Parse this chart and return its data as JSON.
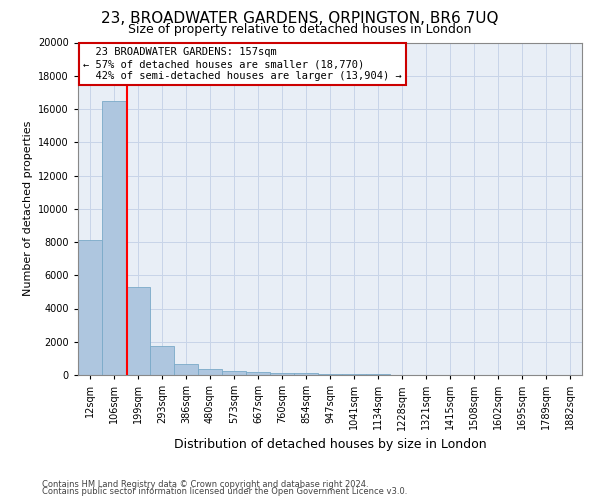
{
  "title": "23, BROADWATER GARDENS, ORPINGTON, BR6 7UQ",
  "subtitle": "Size of property relative to detached houses in London",
  "xlabel": "Distribution of detached houses by size in London",
  "ylabel": "Number of detached properties",
  "footnote1": "Contains HM Land Registry data © Crown copyright and database right 2024.",
  "footnote2": "Contains public sector information licensed under the Open Government Licence v3.0.",
  "bar_labels": [
    "12sqm",
    "106sqm",
    "199sqm",
    "293sqm",
    "386sqm",
    "480sqm",
    "573sqm",
    "667sqm",
    "760sqm",
    "854sqm",
    "947sqm",
    "1041sqm",
    "1134sqm",
    "1228sqm",
    "1321sqm",
    "1415sqm",
    "1508sqm",
    "1602sqm",
    "1695sqm",
    "1789sqm",
    "1882sqm"
  ],
  "bar_values": [
    8100,
    16500,
    5300,
    1750,
    650,
    350,
    270,
    200,
    150,
    110,
    80,
    60,
    45,
    30,
    20,
    15,
    12,
    10,
    8,
    6,
    5
  ],
  "bar_color": "#aec6df",
  "bar_edgecolor": "#7aaac8",
  "ylim": [
    0,
    20000
  ],
  "yticks": [
    0,
    2000,
    4000,
    6000,
    8000,
    10000,
    12000,
    14000,
    16000,
    18000,
    20000
  ],
  "property_name": "23 BROADWATER GARDENS: 157sqm",
  "pct_smaller": "57% of detached houses are smaller (18,770)",
  "pct_larger": "42% of semi-detached houses are larger (13,904)",
  "vline_x": 1.55,
  "annotation_box_color": "#ffffff",
  "annotation_box_edgecolor": "#cc0000",
  "grid_color": "#c8d4e8",
  "background_color": "#e8eef6",
  "title_fontsize": 11,
  "subtitle_fontsize": 9,
  "ylabel_fontsize": 8,
  "xlabel_fontsize": 9,
  "tick_fontsize": 7,
  "ann_fontsize": 7.5,
  "footnote_fontsize": 6
}
